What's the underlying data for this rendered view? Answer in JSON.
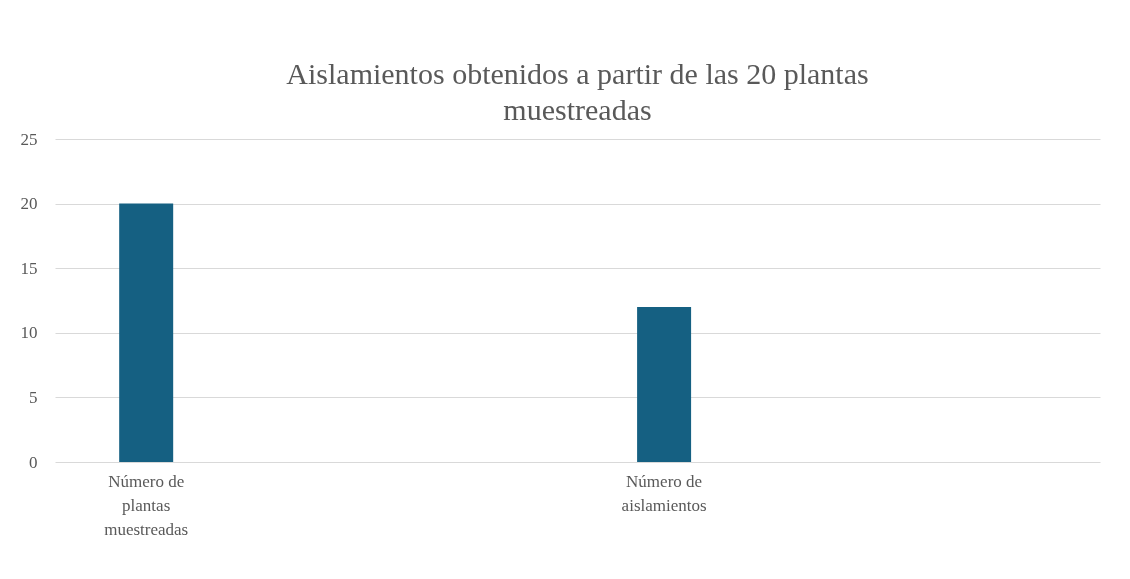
{
  "chart_data": {
    "type": "bar",
    "title": "Aislamientos obtenidos a partir de las 20 plantas muestreadas",
    "categories": [
      "Número de plantas muestreadas",
      "Número de aislamientos"
    ],
    "values": [
      20,
      12
    ],
    "color": "#156082",
    "ylim": [
      0,
      25
    ],
    "yticks": [
      0,
      5,
      10,
      15,
      20,
      25
    ],
    "grid": "y"
  }
}
